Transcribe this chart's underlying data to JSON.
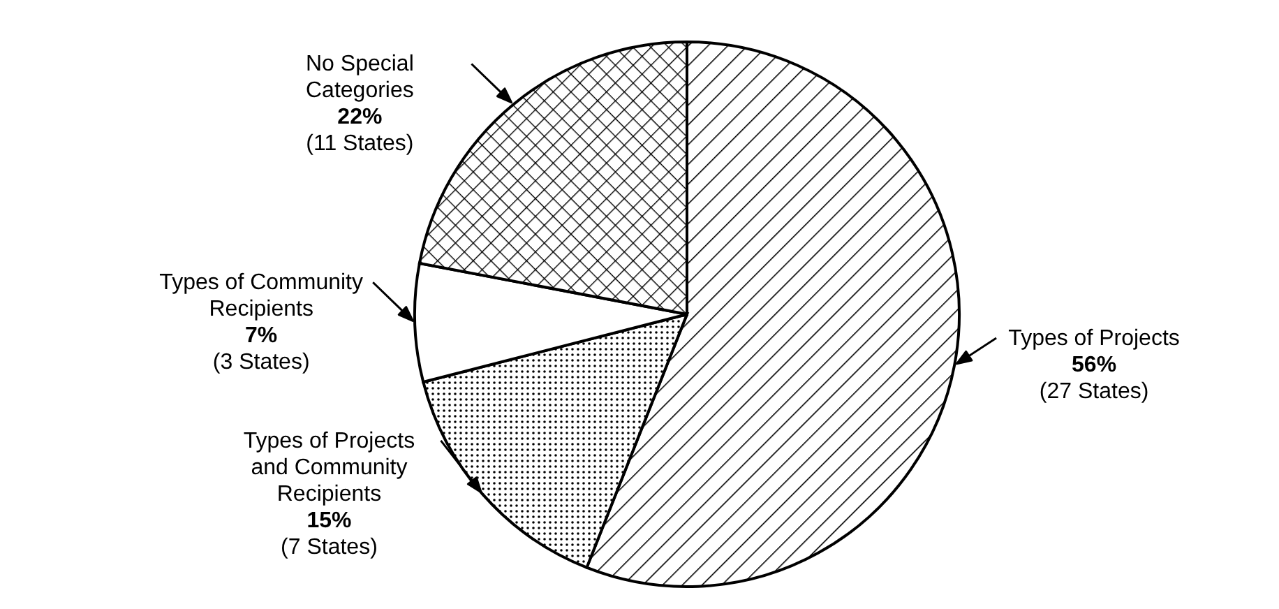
{
  "chart_data": {
    "type": "pie",
    "categories": [
      "Types of Projects",
      "Types of Projects and Community Recipients",
      "Types of Community Recipients",
      "No Special Categories"
    ],
    "values": [
      56,
      15,
      7,
      22
    ],
    "colors": [
      "#000000",
      "#000000",
      "#ffffff",
      "#000000"
    ],
    "value_labels": [
      "56%",
      "15%",
      "7%",
      "22%"
    ],
    "annotations": [
      "(27 States)",
      "(7 States)",
      "(3 States)",
      "(11 States)"
    ]
  }
}
